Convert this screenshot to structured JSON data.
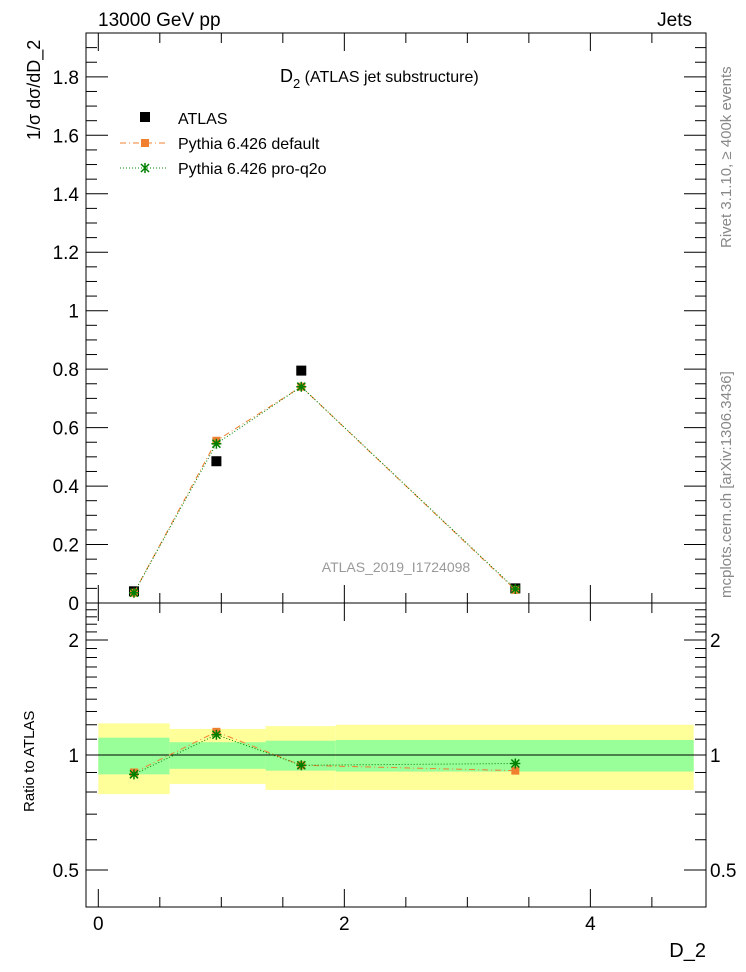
{
  "header": {
    "left": "13000 GeV pp",
    "right": "Jets"
  },
  "side": {
    "rivet": "Rivet 3.1.10, ≥ 400k events",
    "mcplots": "mcplots.cern.ch [arXiv:1306.3436]"
  },
  "watermark": "ATLAS_2019_I1724098",
  "chart_data": [
    {
      "type": "scatter",
      "title": "D2 (ATLAS jet substructure)",
      "title_main": "D",
      "title_sub": "2",
      "title_rest": " (ATLAS jet substructure)",
      "ylabel": "1/σ dσ/dD_2",
      "xlim": [
        -0.1,
        4.94
      ],
      "ylim": [
        0,
        1.95
      ],
      "yticks": [
        0,
        0.2,
        0.4,
        0.6,
        0.8,
        1,
        1.2,
        1.4,
        1.6,
        1.8
      ],
      "ytick_labels": [
        "0",
        "0.2",
        "0.4",
        "0.6",
        "0.8",
        "1",
        "1.2",
        "1.4",
        "1.6",
        "1.8"
      ],
      "legend_position": "top-left",
      "x": [
        0.29,
        0.96,
        1.65,
        3.39
      ],
      "series": [
        {
          "name": "ATLAS",
          "color": "#000000",
          "values": [
            0.04,
            0.485,
            0.795,
            0.05
          ]
        },
        {
          "name": "Pythia 6.426 default",
          "color": "#f08030",
          "values": [
            0.035,
            0.555,
            0.74,
            0.045
          ]
        },
        {
          "name": "Pythia 6.426 pro-q2o",
          "color": "#008000",
          "values": [
            0.035,
            0.545,
            0.74,
            0.048
          ]
        }
      ]
    },
    {
      "type": "scatter",
      "ylabel": "Ratio to ATLAS",
      "xlabel": "D_2",
      "xlim": [
        -0.1,
        4.94
      ],
      "ylim": [
        0.4,
        2.5
      ],
      "yscale": "log",
      "yticks": [
        0.5,
        1,
        2
      ],
      "ytick_labels": [
        "0.5",
        "1",
        "2"
      ],
      "xticks": [
        0,
        2,
        4
      ],
      "xtick_labels": [
        "0",
        "2",
        "4"
      ],
      "bin_edges": [
        0,
        0.58,
        1.36,
        1.93,
        4.84
      ],
      "band_1sigma": [
        [
          0.89,
          1.11
        ],
        [
          0.92,
          1.08
        ],
        [
          0.91,
          1.09
        ],
        [
          0.905,
          1.095
        ]
      ],
      "band_2sigma": [
        [
          0.79,
          1.21
        ],
        [
          0.84,
          1.17
        ],
        [
          0.81,
          1.19
        ],
        [
          0.81,
          1.2
        ]
      ],
      "x": [
        0.29,
        0.96,
        1.65,
        3.39
      ],
      "series": [
        {
          "name": "Pythia 6.426 default",
          "color": "#f08030",
          "values": [
            0.9,
            1.15,
            0.94,
            0.91
          ]
        },
        {
          "name": "Pythia 6.426 pro-q2o",
          "color": "#008000",
          "values": [
            0.89,
            1.13,
            0.94,
            0.95
          ]
        }
      ]
    }
  ]
}
